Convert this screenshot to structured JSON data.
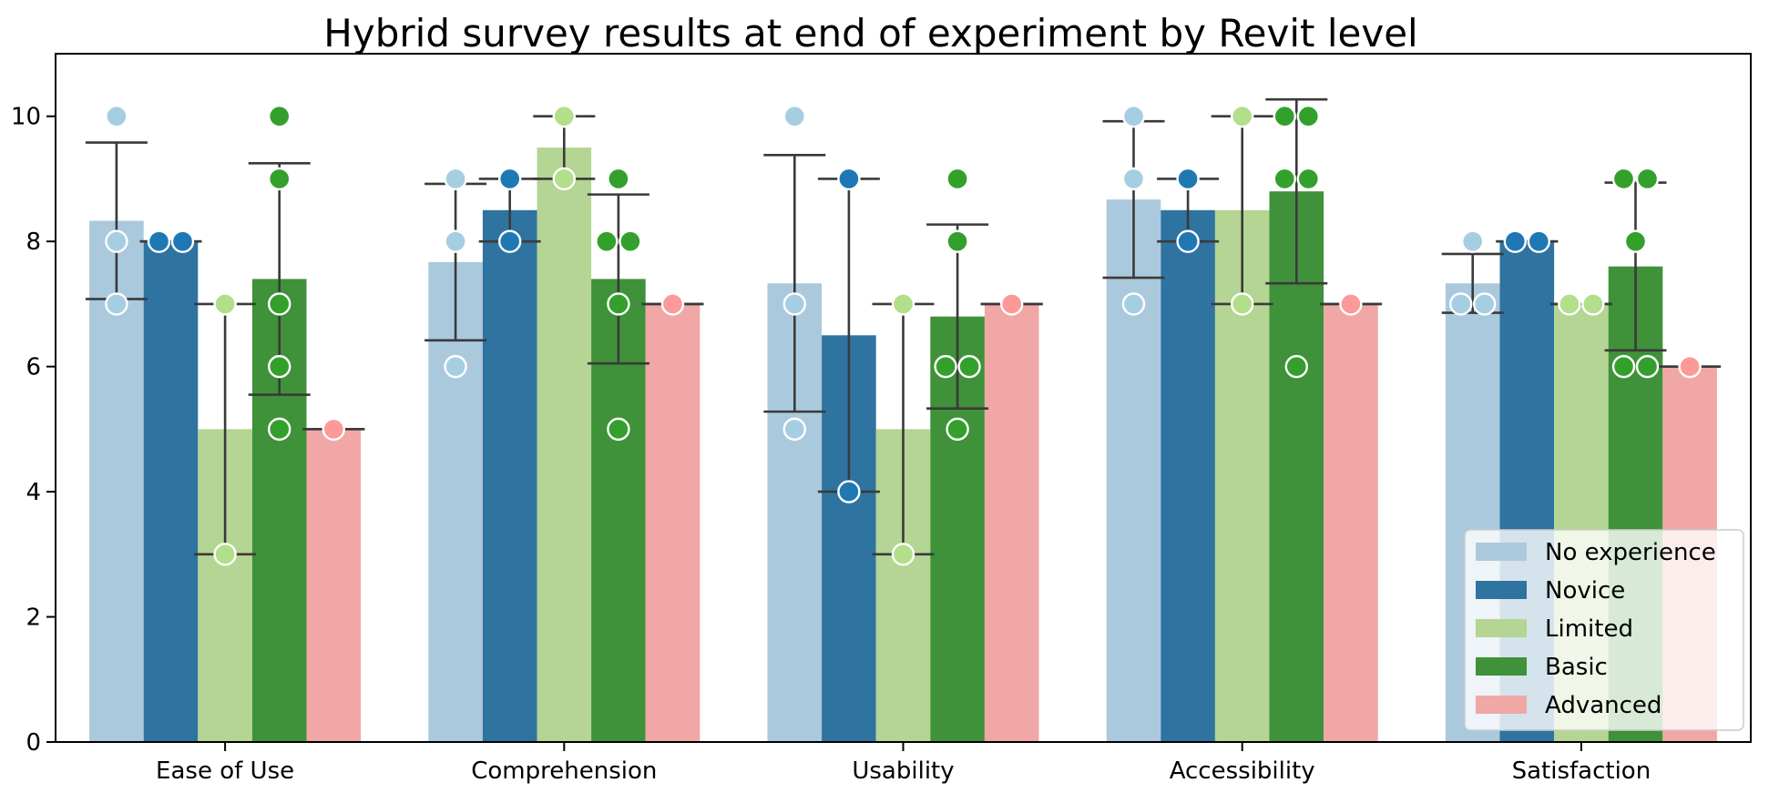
{
  "chart_data": {
    "type": "bar",
    "title": "Hybrid survey results at end of experiment by Revit level",
    "xlabel": "",
    "ylabel": "",
    "ylim": [
      0,
      11
    ],
    "yticks": [
      0,
      2,
      4,
      6,
      8,
      10
    ],
    "grid": false,
    "legend_position": "lower-right",
    "categories": [
      "Ease of Use",
      "Comprehension",
      "Usability",
      "Accessibility",
      "Satisfaction"
    ],
    "series": [
      {
        "name": "No experience",
        "bar_color": "#abc9dc",
        "point_color": "#a6cee3",
        "values": [
          8.33,
          7.67,
          7.33,
          8.67,
          7.33
        ],
        "err_low": [
          7.08,
          6.42,
          5.28,
          7.42,
          6.86
        ],
        "err_high": [
          9.58,
          8.92,
          9.38,
          9.92,
          7.8
        ],
        "points": [
          [
            10,
            8,
            7
          ],
          [
            9,
            8,
            6
          ],
          [
            10,
            7,
            5
          ],
          [
            10,
            9,
            7
          ],
          [
            7,
            7,
            8
          ]
        ]
      },
      {
        "name": "Novice",
        "bar_color": "#2f73a1",
        "point_color": "#1f78b4",
        "values": [
          8,
          8.5,
          6.5,
          8.5,
          8
        ],
        "err_low": [
          8,
          8,
          4,
          8,
          8
        ],
        "err_high": [
          8,
          9,
          9,
          9,
          8
        ],
        "points": [
          [
            8,
            8
          ],
          [
            9,
            8
          ],
          [
            9,
            4
          ],
          [
            9,
            8
          ],
          [
            8,
            8
          ]
        ]
      },
      {
        "name": "Limited",
        "bar_color": "#b4d593",
        "point_color": "#b2df8a",
        "values": [
          5,
          9.5,
          5,
          8.5,
          7
        ],
        "err_low": [
          3,
          9,
          3,
          7,
          7
        ],
        "err_high": [
          7,
          10,
          7,
          10,
          7
        ],
        "points": [
          [
            7,
            3
          ],
          [
            10,
            9
          ],
          [
            7,
            3
          ],
          [
            10,
            7
          ],
          [
            7,
            7
          ]
        ]
      },
      {
        "name": "Basic",
        "bar_color": "#3f913a",
        "point_color": "#33a02c",
        "values": [
          7.4,
          7.4,
          6.8,
          8.8,
          7.6
        ],
        "err_low": [
          5.55,
          6.05,
          5.33,
          7.33,
          6.26
        ],
        "err_high": [
          9.25,
          8.75,
          8.27,
          10.27,
          8.94
        ],
        "points": [
          [
            10,
            9,
            7,
            6,
            5
          ],
          [
            8,
            8,
            9,
            7,
            5
          ],
          [
            6,
            6,
            9,
            8,
            5
          ],
          [
            9,
            10,
            10,
            9,
            6
          ],
          [
            6,
            6,
            9,
            9,
            8
          ]
        ]
      },
      {
        "name": "Advanced",
        "bar_color": "#f0a7a6",
        "point_color": "#fb9a99",
        "values": [
          5,
          7,
          7,
          7,
          6
        ],
        "err_low": [
          5,
          7,
          7,
          7,
          6
        ],
        "err_high": [
          5,
          7,
          7,
          7,
          6
        ],
        "points": [
          [
            5
          ],
          [
            7
          ],
          [
            7
          ],
          [
            7
          ],
          [
            6
          ]
        ]
      }
    ]
  }
}
